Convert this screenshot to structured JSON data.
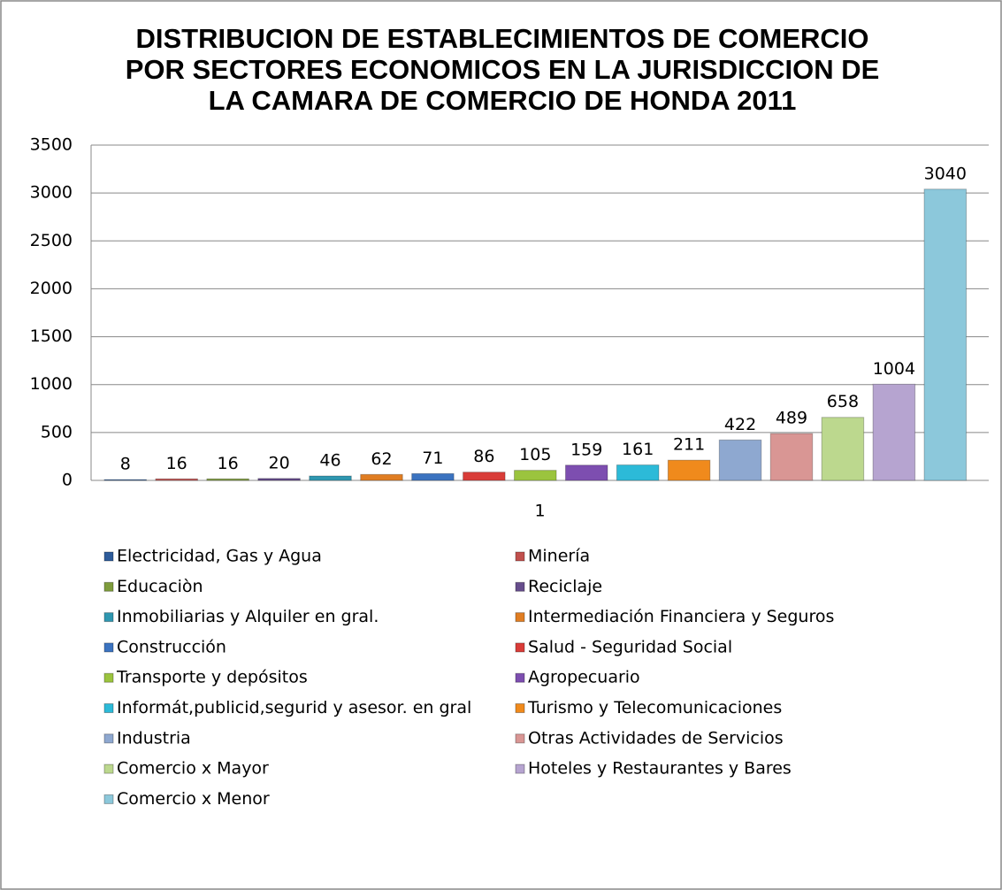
{
  "chart_data": {
    "type": "bar",
    "title": [
      "DISTRIBUCION DE ESTABLECIMIENTOS DE COMERCIO",
      "POR SECTORES ECONOMICOS EN LA JURISDICCION DE",
      "LA CAMARA DE COMERCIO DE HONDA  2011"
    ],
    "categories": [
      "1"
    ],
    "series": [
      {
        "name": "Electricidad, Gas y Agua",
        "color": "#2e5c9a",
        "values": [
          8
        ]
      },
      {
        "name": "Minería",
        "color": "#c0504d",
        "values": [
          16
        ]
      },
      {
        "name": "Educaciòn",
        "color": "#7e9c3c",
        "values": [
          16
        ]
      },
      {
        "name": "Reciclaje",
        "color": "#664d8c",
        "values": [
          20
        ]
      },
      {
        "name": "Inmobiliarias y Alquiler en gral.",
        "color": "#2f97b0",
        "values": [
          46
        ]
      },
      {
        "name": "Intermediación Financiera y Seguros",
        "color": "#e07d22",
        "values": [
          62
        ]
      },
      {
        "name": "Construcción",
        "color": "#3b73c0",
        "values": [
          71
        ]
      },
      {
        "name": "Salud - Seguridad Social",
        "color": "#d93c38",
        "values": [
          86
        ]
      },
      {
        "name": "Transporte y depósitos",
        "color": "#9bc43e",
        "values": [
          105
        ]
      },
      {
        "name": "Agropecuario",
        "color": "#7d4eb0",
        "values": [
          159
        ]
      },
      {
        "name": "Informát,publicid,segurid y asesor. en gral",
        "color": "#2cbad8",
        "values": [
          161
        ]
      },
      {
        "name": "Turismo y Telecomunicaciones",
        "color": "#f08a1c",
        "values": [
          211
        ]
      },
      {
        "name": "Industria",
        "color": "#8ea8d0",
        "values": [
          422
        ]
      },
      {
        "name": "Otras Actividades de Servicios",
        "color": "#d99694",
        "values": [
          489
        ]
      },
      {
        "name": "Comercio x Mayor",
        "color": "#bcd88e",
        "values": [
          658
        ]
      },
      {
        "name": "Hoteles y Restaurantes  y Bares",
        "color": "#b6a4d0",
        "values": [
          1004
        ]
      },
      {
        "name": "Comercio x Menor",
        "color": "#8cc8db",
        "values": [
          3040
        ]
      }
    ],
    "ylim": [
      0,
      3500
    ],
    "yticks": [
      0,
      500,
      1000,
      1500,
      2000,
      2500,
      3000,
      3500
    ],
    "grid": true
  }
}
